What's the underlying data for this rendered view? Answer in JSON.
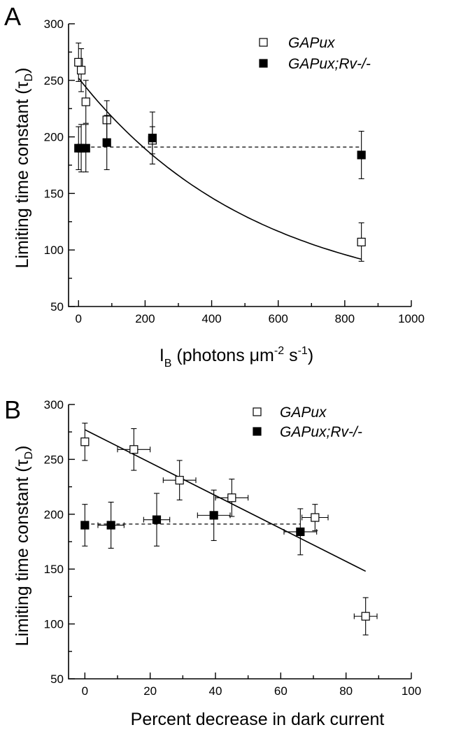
{
  "chart_data": [
    {
      "type": "scatter",
      "panel_label": "A",
      "xlabel": "I",
      "xlabel_sub": "B",
      "xlabel_rest": " (photons μm",
      "xlabel_sup1": "-2",
      "xlabel_mid": " s",
      "xlabel_sup2": "-1",
      "xlabel_end": ")",
      "ylabel": "Limiting time constant (τ",
      "ylabel_sub": "D",
      "ylabel_end": ")",
      "xlim": [
        -30,
        1000
      ],
      "ylim": [
        50,
        300
      ],
      "xticks": [
        0,
        200,
        400,
        600,
        800,
        1000
      ],
      "yticks": [
        50,
        100,
        150,
        200,
        250,
        300
      ],
      "legend_position": "top-right",
      "series": [
        {
          "name": "GAPux",
          "marker": "open-square",
          "points": [
            {
              "x": 0,
              "y": 266,
              "yerr": 17
            },
            {
              "x": 8,
              "y": 259,
              "yerr": 19
            },
            {
              "x": 22,
              "y": 231,
              "yerr": 19
            },
            {
              "x": 85,
              "y": 215,
              "yerr": 17
            },
            {
              "x": 222,
              "y": 197,
              "yerr": 12
            },
            {
              "x": 850,
              "y": 107,
              "yerr": 17
            }
          ]
        },
        {
          "name": "GAPux;Rv-/-",
          "marker": "filled-square",
          "points": [
            {
              "x": 0,
              "y": 190,
              "yerr": 19
            },
            {
              "x": 8,
              "y": 190,
              "yerr": 21
            },
            {
              "x": 22,
              "y": 190,
              "yerr": 21
            },
            {
              "x": 85,
              "y": 195,
              "yerr": 24
            },
            {
              "x": 222,
              "y": 199,
              "yerr": 23
            },
            {
              "x": 850,
              "y": 184,
              "yerr": 21
            }
          ]
        }
      ],
      "fit_curve": {
        "type": "exponential",
        "x_range": [
          0,
          850
        ],
        "a": 202,
        "b": 50,
        "tau": 540
      },
      "reference_line": {
        "style": "dashed",
        "y": 191,
        "x_range": [
          0,
          850
        ]
      }
    },
    {
      "type": "scatter",
      "panel_label": "B",
      "xlabel": "Percent decrease in dark current",
      "ylabel": "Limiting time constant (τ",
      "ylabel_sub": "D",
      "ylabel_end": ")",
      "xlim": [
        -5,
        100
      ],
      "ylim": [
        50,
        300
      ],
      "xticks": [
        0,
        20,
        40,
        60,
        80,
        100
      ],
      "yticks": [
        50,
        100,
        150,
        200,
        250,
        300
      ],
      "legend_position": "top-center",
      "series": [
        {
          "name": "GAPux",
          "marker": "open-square",
          "points": [
            {
              "x": 0,
              "y": 266,
              "xerr": 0,
              "yerr": 17
            },
            {
              "x": 15,
              "y": 259,
              "xerr": 5,
              "yerr": 19
            },
            {
              "x": 29,
              "y": 231,
              "xerr": 5,
              "yerr": 18
            },
            {
              "x": 45,
              "y": 215,
              "xerr": 5,
              "yerr": 17
            },
            {
              "x": 70.5,
              "y": 197,
              "xerr": 4,
              "yerr": 12
            },
            {
              "x": 86,
              "y": 107,
              "xerr": 3.5,
              "yerr": 17
            }
          ]
        },
        {
          "name": "GAPux;Rv-/-",
          "marker": "filled-square",
          "points": [
            {
              "x": 0,
              "y": 190,
              "xerr": 0,
              "yerr": 19
            },
            {
              "x": 8,
              "y": 190,
              "xerr": 4,
              "yerr": 21
            },
            {
              "x": 22,
              "y": 195,
              "xerr": 4,
              "yerr": 24
            },
            {
              "x": 39.5,
              "y": 199,
              "xerr": 5,
              "yerr": 23
            },
            {
              "x": 66,
              "y": 184,
              "xerr": 5,
              "yerr": 21
            }
          ]
        }
      ],
      "fit_line": {
        "type": "linear",
        "x_range": [
          0,
          86
        ],
        "y_range": [
          277,
          148
        ]
      },
      "reference_line": {
        "style": "dashed",
        "y": 191,
        "x_range": [
          0,
          66
        ]
      }
    }
  ]
}
